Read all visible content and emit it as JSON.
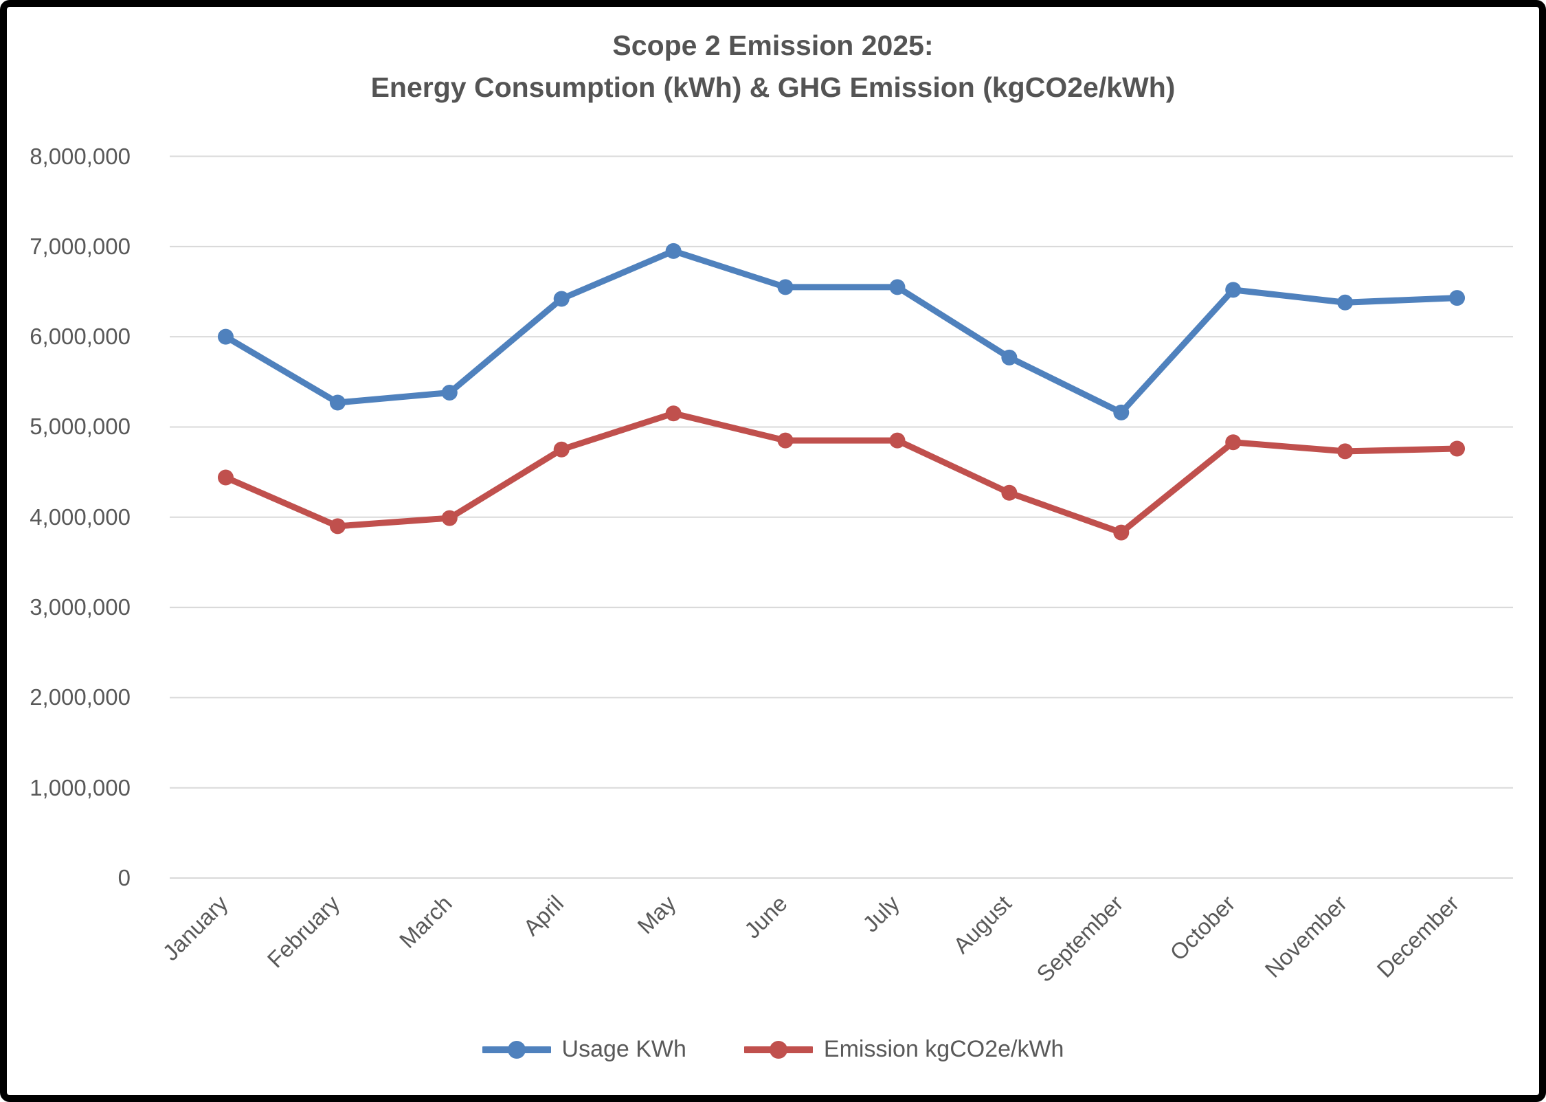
{
  "chart_data": {
    "type": "line",
    "title": "Scope 2 Emission 2025:\nEnergy Consumption (kWh) & GHG Emission (kgCO2e/kWh)",
    "title_line1": "Scope 2 Emission 2025:",
    "title_line2": "Energy Consumption (kWh) & GHG Emission (kgCO2e/kWh)",
    "categories": [
      "January",
      "February",
      "March",
      "April",
      "May",
      "June",
      "July",
      "August",
      "September",
      "October",
      "November",
      "December"
    ],
    "series": [
      {
        "name": "Usage KWh",
        "color": "#4F81BD",
        "values": [
          6000000,
          5270000,
          5380000,
          6420000,
          6950000,
          6550000,
          6550000,
          5770000,
          5160000,
          6520000,
          6380000,
          6430000
        ]
      },
      {
        "name": "Emission kgCO2e/kWh",
        "color": "#C0504D",
        "values": [
          4440000,
          3900000,
          3990000,
          4750000,
          5150000,
          4850000,
          4850000,
          4270000,
          3830000,
          4830000,
          4730000,
          4760000
        ]
      }
    ],
    "y_axis": {
      "min": 0,
      "max": 8000000,
      "step": 1000000,
      "tick_labels": [
        "8,000,000",
        "7,000,000",
        "6,000,000",
        "5,000,000",
        "4,000,000",
        "3,000,000",
        "2,000,000",
        "1,000,000",
        "0"
      ]
    },
    "xlabel": "",
    "ylabel": "",
    "ylim": [
      0,
      8000000
    ],
    "grid": true,
    "legend_position": "bottom",
    "colors": {
      "gridline": "#D9D9D9",
      "axis_text": "#595959",
      "title_text": "#545454",
      "frame_border": "#000000",
      "background": "#FFFFFF"
    },
    "marker": "circle"
  }
}
